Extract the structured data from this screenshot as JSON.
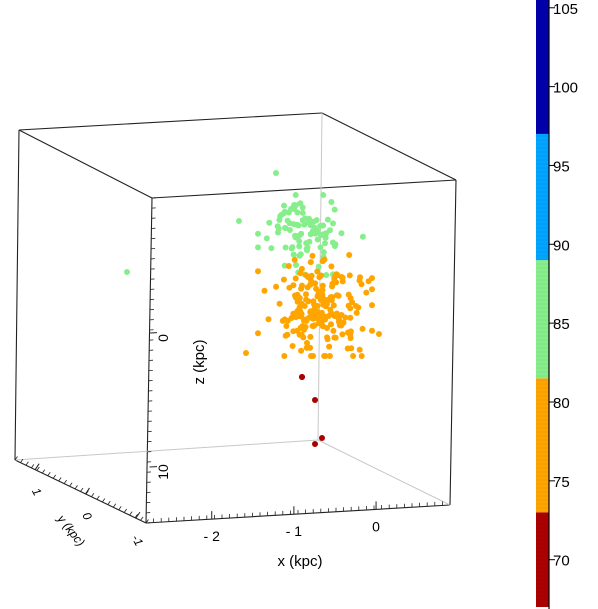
{
  "chart_data": {
    "type": "scatter",
    "title": "",
    "projection": "3d",
    "axes": {
      "x": {
        "label": "x (kpc)",
        "ticks": [
          "- 2",
          "- 1",
          "0"
        ],
        "tick_values": [
          -2,
          -1,
          0
        ],
        "range": [
          -2.8,
          0.9
        ]
      },
      "y": {
        "label": "y (kpc)",
        "ticks": [
          "1",
          "0",
          "-1"
        ],
        "tick_values": [
          1,
          0,
          -1
        ],
        "range": [
          -1.2,
          1.4
        ]
      },
      "z": {
        "label": "z (kpc)",
        "ticks": [
          "0",
          "10"
        ],
        "tick_values": [
          0,
          10
        ]
      }
    },
    "grid": false,
    "colorbar": {
      "ticks": [
        "105",
        "100",
        "95",
        "90",
        "85",
        "80",
        "75",
        "70"
      ],
      "tick_values": [
        105,
        100,
        95,
        90,
        85,
        80,
        75,
        70
      ],
      "range": [
        67,
        106
      ],
      "bands": [
        {
          "from": 67,
          "to": 73,
          "color": "#aa0000"
        },
        {
          "from": 73,
          "to": 81.5,
          "color": "#ffa500"
        },
        {
          "from": 81.5,
          "to": 89,
          "color": "#86ef8c"
        },
        {
          "from": 89,
          "to": 97,
          "color": "#00a5ff"
        },
        {
          "from": 97,
          "to": 106,
          "color": "#0000aa"
        }
      ]
    },
    "series": [
      {
        "color": "#86ef8c",
        "band": 85,
        "count": 95
      },
      {
        "color": "#ffa500",
        "band": 78,
        "count": 205
      },
      {
        "color": "#aa0000",
        "band": 70,
        "count": 5
      }
    ]
  }
}
